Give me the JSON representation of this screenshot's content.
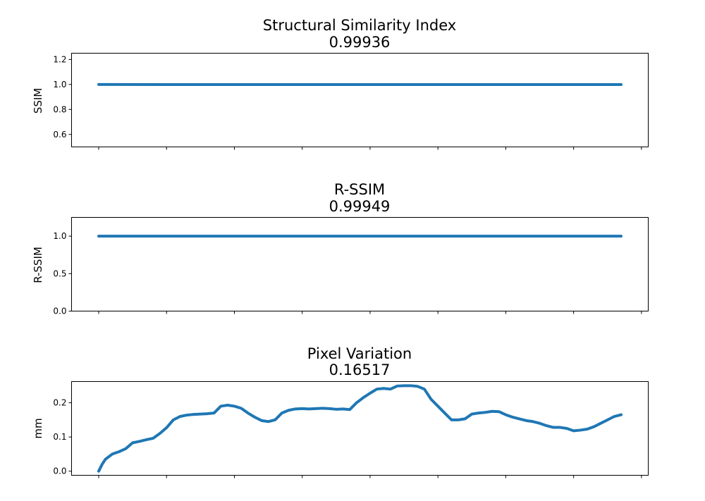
{
  "chart_data": [
    {
      "type": "line",
      "title": "Structural Similarity Index",
      "subtitle": "0.99936",
      "xlabel": "",
      "ylabel": "SSIM",
      "ylim": [
        0.5,
        1.25
      ],
      "yticks": [
        0.6,
        0.8,
        1.0,
        1.2
      ],
      "ytick_labels": [
        "0.6",
        "0.8",
        "1.0",
        "1.2"
      ],
      "xlim": [
        -4,
        81
      ],
      "xticks": [
        0,
        10,
        20,
        30,
        40,
        50,
        60,
        70,
        80
      ],
      "xtick_labels_visible": false,
      "grid": false,
      "color": "#1f77b4",
      "series": [
        {
          "x": [
            0,
            10,
            20,
            30,
            40,
            50,
            60,
            70,
            77
          ],
          "values": [
            0.9995,
            0.9994,
            0.9994,
            0.9993,
            0.9994,
            0.9993,
            0.9994,
            0.9993,
            0.9994
          ]
        }
      ]
    },
    {
      "type": "line",
      "title": "R-SSIM",
      "subtitle": "0.99949",
      "xlabel": "",
      "ylabel": "R-SSIM",
      "ylim": [
        0.0,
        1.25
      ],
      "yticks": [
        0.0,
        0.5,
        1.0
      ],
      "ytick_labels": [
        "0.0",
        "0.5",
        "1.0"
      ],
      "xlim": [
        -4,
        81
      ],
      "xticks": [
        0,
        10,
        20,
        30,
        40,
        50,
        60,
        70,
        80
      ],
      "xtick_labels_visible": false,
      "grid": false,
      "color": "#1f77b4",
      "series": [
        {
          "x": [
            0,
            10,
            20,
            30,
            40,
            50,
            60,
            70,
            77
          ],
          "values": [
            0.9995,
            0.9995,
            0.9995,
            0.9995,
            0.9995,
            0.9995,
            0.9995,
            0.9995,
            0.9995
          ]
        }
      ]
    },
    {
      "type": "line",
      "title": "Pixel Variation",
      "subtitle": "0.16517",
      "xlabel": "",
      "ylabel": "mm",
      "ylim": [
        -0.012,
        0.262
      ],
      "yticks": [
        0.0,
        0.1,
        0.2
      ],
      "ytick_labels": [
        "0.0",
        "0.1",
        "0.2"
      ],
      "xlim": [
        -4,
        81
      ],
      "xticks": [
        0,
        10,
        20,
        30,
        40,
        50,
        60,
        70,
        80
      ],
      "xtick_labels_visible": false,
      "grid": false,
      "color": "#1f77b4",
      "series": [
        {
          "x": [
            0,
            0.5,
            1,
            2,
            3,
            4,
            5,
            6,
            7,
            8,
            9,
            10,
            11,
            12,
            13,
            14,
            15,
            16,
            17,
            18,
            19,
            20,
            21,
            22,
            23,
            24,
            25,
            26,
            27,
            28,
            29,
            30,
            31,
            32,
            33,
            34,
            35,
            36,
            37,
            38,
            39,
            40,
            41,
            42,
            43,
            44,
            45,
            46,
            47,
            48,
            49,
            50,
            51,
            52,
            53,
            54,
            55,
            56,
            57,
            58,
            59,
            60,
            61,
            62,
            63,
            64,
            65,
            66,
            67,
            68,
            69,
            70,
            71,
            72,
            73,
            74,
            75,
            76,
            77
          ],
          "values": [
            0.0,
            0.02,
            0.035,
            0.05,
            0.057,
            0.066,
            0.083,
            0.087,
            0.092,
            0.096,
            0.11,
            0.127,
            0.15,
            0.16,
            0.164,
            0.166,
            0.167,
            0.168,
            0.17,
            0.19,
            0.193,
            0.19,
            0.184,
            0.17,
            0.158,
            0.148,
            0.145,
            0.15,
            0.17,
            0.178,
            0.182,
            0.183,
            0.182,
            0.183,
            0.184,
            0.183,
            0.181,
            0.182,
            0.18,
            0.2,
            0.215,
            0.228,
            0.24,
            0.242,
            0.24,
            0.249,
            0.25,
            0.25,
            0.248,
            0.24,
            0.21,
            0.19,
            0.17,
            0.15,
            0.15,
            0.153,
            0.167,
            0.17,
            0.172,
            0.175,
            0.174,
            0.165,
            0.158,
            0.153,
            0.148,
            0.145,
            0.14,
            0.133,
            0.128,
            0.128,
            0.125,
            0.118,
            0.12,
            0.123,
            0.13,
            0.14,
            0.15,
            0.16,
            0.165
          ]
        }
      ]
    }
  ]
}
